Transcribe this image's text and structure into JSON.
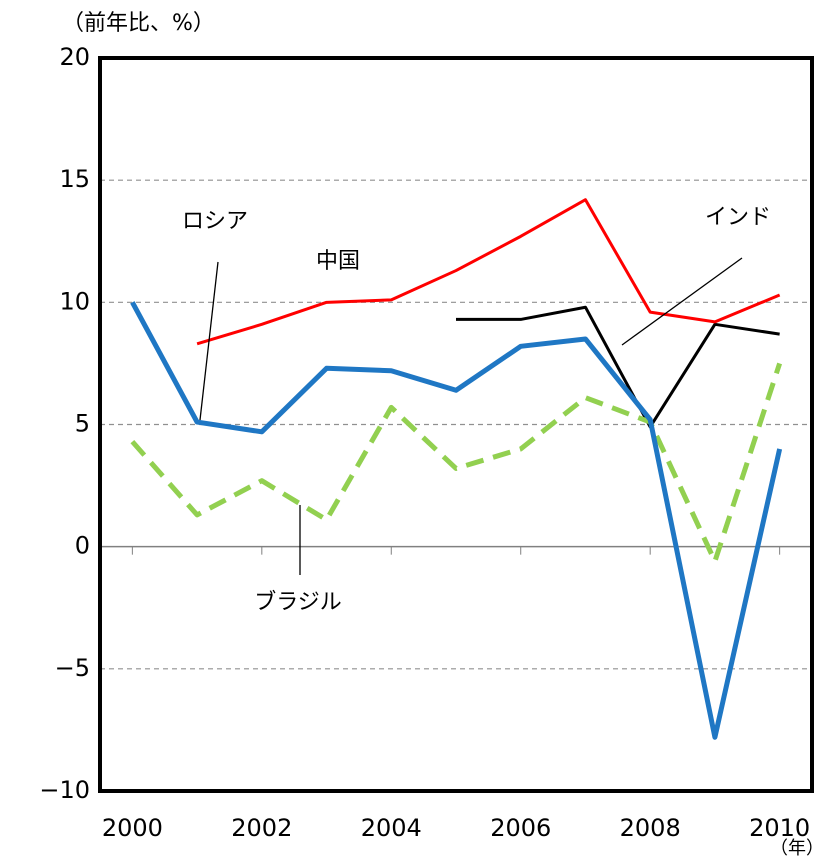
{
  "chart_data": {
    "type": "line",
    "y_unit": "（前年比、%）",
    "x_unit": "（年）",
    "x": [
      2000,
      2001,
      2002,
      2003,
      2004,
      2005,
      2006,
      2007,
      2008,
      2009,
      2010
    ],
    "xlim": [
      1999.5,
      2010.5
    ],
    "xticks": [
      2000,
      2002,
      2004,
      2006,
      2008,
      2010
    ],
    "ylim": [
      -10,
      20
    ],
    "yticks": [
      {
        "value": -10,
        "label": "−10"
      },
      {
        "value": -5,
        "label": "−5"
      },
      0,
      5,
      10,
      15,
      20
    ],
    "grid": true,
    "series": [
      {
        "name": "ロシア",
        "color": "#1f77c4",
        "dashed": false,
        "values": [
          10.0,
          5.1,
          4.7,
          7.3,
          7.2,
          6.4,
          8.2,
          8.5,
          5.2,
          -7.8,
          4.0
        ]
      },
      {
        "name": "中国",
        "color": "#ff0000",
        "dashed": false,
        "values": [
          null,
          8.3,
          9.1,
          10.0,
          10.1,
          11.3,
          12.7,
          14.2,
          9.6,
          9.2,
          10.3
        ]
      },
      {
        "name": "インド",
        "color": "#000000",
        "dashed": false,
        "values": [
          null,
          null,
          null,
          null,
          null,
          9.3,
          9.3,
          9.8,
          4.9,
          9.1,
          8.7
        ]
      },
      {
        "name": "ブラジル",
        "color": "#92d050",
        "dashed": true,
        "values": [
          4.3,
          1.3,
          2.7,
          1.1,
          5.7,
          3.2,
          4.0,
          6.1,
          5.1,
          -0.6,
          7.5
        ]
      }
    ]
  }
}
